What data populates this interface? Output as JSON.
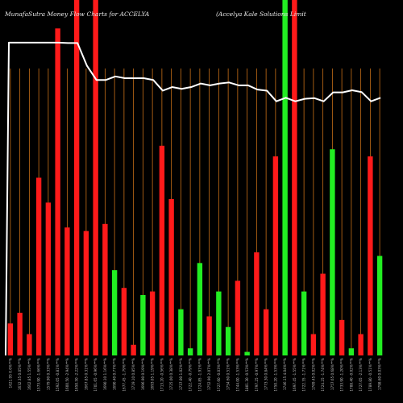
{
  "chart_data": {
    "type": "bar",
    "title_left": "MunafaSutra  Money  Flow  Charts for ACCELYA",
    "title_right": "(Accelya  Kale    Solutions  Limit",
    "ylim": [
      0,
      100
    ],
    "grid": "vertical",
    "colors": {
      "up": "#22ee22",
      "down": "#ff1a1a",
      "line": "#ffffff",
      "grid": "#c87018",
      "background": "#000000"
    },
    "bars": [
      {
        "value": 9,
        "color": "down",
        "label": "1621.95 0.6%**%"
      },
      {
        "value": 12,
        "color": "down",
        "label": "1632.35 0.05%**%"
      },
      {
        "value": 6,
        "color": "down",
        "label": "1602.85 1.55%**%"
      },
      {
        "value": 50,
        "color": "down",
        "label": "1573.90 -1.66%**%"
      },
      {
        "value": 43,
        "color": "down",
        "label": "1579.90 0.33%**%"
      },
      {
        "value": 92,
        "color": "down",
        "label": "1592.05 -0.81%**%"
      },
      {
        "value": 36,
        "color": "down",
        "label": "1600.50 -2.94%**%"
      },
      {
        "value": 100,
        "color": "down",
        "label": "1650.50 -2.22%**%"
      },
      {
        "value": 35,
        "color": "down",
        "label": "1667.85 0.31%**%"
      },
      {
        "value": 100,
        "color": "down",
        "label": "1701.65 -0.96%**%"
      },
      {
        "value": 37,
        "color": "down",
        "label": "1690.10 1.16%**%"
      },
      {
        "value": 24,
        "color": "up",
        "label": "1690.40 0.77%**%"
      },
      {
        "value": 19,
        "color": "down",
        "label": "1677.45 -1.79%**%"
      },
      {
        "value": 3,
        "color": "down",
        "label": "1719.10 0.85%**%"
      },
      {
        "value": 17,
        "color": "up",
        "label": "1696.90 0.19%**%"
      },
      {
        "value": 18,
        "color": "down",
        "label": "1693.05 1.19%**%"
      },
      {
        "value": 59,
        "color": "down",
        "label": "1713.20 -0.56%**%"
      },
      {
        "value": 44,
        "color": "down",
        "label": "1725.00 0.38%**%"
      },
      {
        "value": 13,
        "color": "up",
        "label": "1737.00 1.02%**%"
      },
      {
        "value": 2,
        "color": "up",
        "label": "1722.40 -0.79%**%"
      },
      {
        "value": 26,
        "color": "up",
        "label": "1724.85 -1.91%**%"
      },
      {
        "value": 11,
        "color": "down",
        "label": "1752.90 2.07%**%"
      },
      {
        "value": 18,
        "color": "up",
        "label": "1727.60 -0.03%**%"
      },
      {
        "value": 8,
        "color": "up",
        "label": "1754.60 0.51%**%"
      },
      {
        "value": 21,
        "color": "down",
        "label": "1744.00 -1.53%**%"
      },
      {
        "value": 1,
        "color": "up",
        "label": "1801.30 -0.53%**%"
      },
      {
        "value": 29,
        "color": "down",
        "label": "1797.25 -0.97%**%"
      },
      {
        "value": 13,
        "color": "down",
        "label": "1773.30 0.84%**%"
      },
      {
        "value": 56,
        "color": "down",
        "label": "1750.20 -1.53%**%"
      },
      {
        "value": 100,
        "color": "up",
        "label": "1746.15 4.04%**%"
      },
      {
        "value": 100,
        "color": "down",
        "label": "1697.45 -1.55%**%"
      },
      {
        "value": 18,
        "color": "up",
        "label": "1722.35 -1.71%**%"
      },
      {
        "value": 6,
        "color": "down",
        "label": "1769.45 0.02%**%"
      },
      {
        "value": 23,
        "color": "down",
        "label": "1724.25 -1.74%**%"
      },
      {
        "value": 58,
        "color": "up",
        "label": "1757.65 0.68%**%"
      },
      {
        "value": 10,
        "color": "down",
        "label": "1733.90 -1.20%**%"
      },
      {
        "value": 2,
        "color": "up",
        "label": "1788.40 -0.02%**%"
      },
      {
        "value": 6,
        "color": "down",
        "label": "1727.05 -2.13%**%"
      },
      {
        "value": 56,
        "color": "down",
        "label": "1789.80 -0.51%**%"
      },
      {
        "value": 28,
        "color": "up",
        "label": "1798.60 0.03%**%"
      }
    ],
    "line": [
      88,
      88,
      88,
      88,
      88,
      88,
      87.9,
      87.9,
      81.5,
      77.5,
      77.5,
      78.5,
      78,
      78,
      78,
      77.5,
      74.5,
      75.5,
      75,
      75.5,
      76.5,
      76,
      76.5,
      76.8,
      76,
      76,
      74.8,
      74.5,
      71.5,
      72.5,
      71.5,
      72.2,
      72.4,
      71.5,
      74,
      74,
      74.6,
      74.1,
      71.5,
      72.5
    ]
  }
}
